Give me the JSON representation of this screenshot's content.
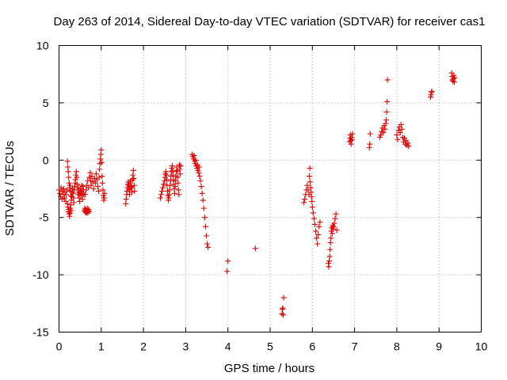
{
  "chart_data": {
    "type": "scatter",
    "title": "Day 263 of 2014, Sidereal Day-to-day VTEC variation (SDTVAR) for receiver cas1",
    "xlabel": "GPS time / hours",
    "ylabel": "SDTVAR / TECUs",
    "xlim": [
      0,
      10
    ],
    "ylim": [
      -15,
      10
    ],
    "x_ticks": [
      0,
      1,
      2,
      3,
      4,
      5,
      6,
      7,
      8,
      9,
      10
    ],
    "y_ticks": [
      -15,
      -10,
      -5,
      0,
      5,
      10
    ],
    "x_tick_labels": [
      "0",
      "1",
      "2",
      "3",
      "4",
      "5",
      "6",
      "7",
      "8",
      "9",
      "10"
    ],
    "y_tick_labels": [
      "-15",
      "-10",
      "-5",
      "0",
      "5",
      "10"
    ],
    "grid": true,
    "marker": "+",
    "series": [
      {
        "name": "cas1",
        "color": "#e00000",
        "points": [
          [
            0.0,
            -2.6
          ],
          [
            0.02,
            -2.9
          ],
          [
            0.04,
            -3.2
          ],
          [
            0.05,
            -2.4
          ],
          [
            0.07,
            -3.4
          ],
          [
            0.08,
            -2.7
          ],
          [
            0.1,
            -3.0
          ],
          [
            0.11,
            -2.5
          ],
          [
            0.13,
            -3.3
          ],
          [
            0.14,
            -2.8
          ],
          [
            0.16,
            -3.6
          ],
          [
            0.17,
            -3.0
          ],
          [
            0.19,
            -2.6
          ],
          [
            0.2,
            -3.8
          ],
          [
            0.21,
            -4.1
          ],
          [
            0.22,
            -4.5
          ],
          [
            0.23,
            -4.3
          ],
          [
            0.24,
            -4.7
          ],
          [
            0.25,
            -4.9
          ],
          [
            0.26,
            -4.6
          ],
          [
            0.27,
            -4.2
          ],
          [
            0.28,
            -3.9
          ],
          [
            0.29,
            -4.4
          ],
          [
            0.2,
            -0.1
          ],
          [
            0.21,
            -0.6
          ],
          [
            0.22,
            -1.0
          ],
          [
            0.23,
            -1.5
          ],
          [
            0.24,
            -2.0
          ],
          [
            0.25,
            -2.4
          ],
          [
            0.26,
            -2.2
          ],
          [
            0.27,
            -2.7
          ],
          [
            0.28,
            -3.1
          ],
          [
            0.29,
            -3.5
          ],
          [
            0.3,
            -3.2
          ],
          [
            0.31,
            -2.8
          ],
          [
            0.32,
            -2.5
          ],
          [
            0.33,
            -2.9
          ],
          [
            0.34,
            -3.3
          ],
          [
            0.35,
            -3.7
          ],
          [
            0.36,
            -2.6
          ],
          [
            0.37,
            -2.3
          ],
          [
            0.38,
            -2.0
          ],
          [
            0.39,
            -1.7
          ],
          [
            0.4,
            -1.3
          ],
          [
            0.41,
            -1.0
          ],
          [
            0.42,
            -1.5
          ],
          [
            0.43,
            -2.1
          ],
          [
            0.44,
            -2.6
          ],
          [
            0.45,
            -3.0
          ],
          [
            0.46,
            -2.4
          ],
          [
            0.47,
            -2.8
          ],
          [
            0.48,
            -3.3
          ],
          [
            0.49,
            -3.6
          ],
          [
            0.5,
            -2.9
          ],
          [
            0.51,
            -2.5
          ],
          [
            0.52,
            -3.1
          ],
          [
            0.53,
            -2.7
          ],
          [
            0.54,
            -2.2
          ],
          [
            0.55,
            -2.9
          ],
          [
            0.56,
            -3.4
          ],
          [
            0.57,
            -2.3
          ],
          [
            0.58,
            -2.6
          ],
          [
            0.59,
            -3.0
          ],
          [
            0.6,
            -4.4
          ],
          [
            0.61,
            -4.2
          ],
          [
            0.62,
            -4.5
          ],
          [
            0.63,
            -4.3
          ],
          [
            0.64,
            -4.6
          ],
          [
            0.65,
            -4.4
          ],
          [
            0.66,
            -4.5
          ],
          [
            0.67,
            -4.2
          ],
          [
            0.68,
            -4.6
          ],
          [
            0.69,
            -4.4
          ],
          [
            0.7,
            -4.3
          ],
          [
            0.71,
            -4.5
          ],
          [
            0.62,
            -3.0
          ],
          [
            0.64,
            -2.6
          ],
          [
            0.66,
            -2.2
          ],
          [
            0.68,
            -1.8
          ],
          [
            0.7,
            -2.4
          ],
          [
            0.72,
            -1.5
          ],
          [
            0.74,
            -1.1
          ],
          [
            0.75,
            -1.8
          ],
          [
            0.76,
            -2.2
          ],
          [
            0.78,
            -1.4
          ],
          [
            0.8,
            -1.9
          ],
          [
            0.82,
            -2.5
          ],
          [
            0.84,
            -1.6
          ],
          [
            0.86,
            -2.0
          ],
          [
            0.88,
            -1.2
          ],
          [
            0.9,
            -1.7
          ],
          [
            0.92,
            -2.3
          ],
          [
            0.94,
            -2.7
          ],
          [
            0.95,
            -1.5
          ],
          [
            0.96,
            -0.8
          ],
          [
            0.97,
            -0.3
          ],
          [
            0.98,
            0.1
          ],
          [
            0.99,
            0.5
          ],
          [
            1.0,
            0.9
          ],
          [
            1.01,
            -0.2
          ],
          [
            1.02,
            -1.4
          ],
          [
            1.03,
            -2.0
          ],
          [
            1.04,
            -2.6
          ],
          [
            1.05,
            -3.1
          ],
          [
            1.06,
            -3.5
          ],
          [
            1.07,
            -3.3
          ],
          [
            1.08,
            -2.9
          ],
          [
            1.58,
            -3.8
          ],
          [
            1.59,
            -3.4
          ],
          [
            1.6,
            -3.0
          ],
          [
            1.61,
            -2.7
          ],
          [
            1.62,
            -2.4
          ],
          [
            1.63,
            -2.1
          ],
          [
            1.64,
            -1.9
          ],
          [
            1.65,
            -2.2
          ],
          [
            1.66,
            -2.6
          ],
          [
            1.67,
            -3.0
          ],
          [
            1.68,
            -2.5
          ],
          [
            1.69,
            -2.0
          ],
          [
            1.7,
            -1.8
          ],
          [
            1.71,
            -2.3
          ],
          [
            1.72,
            -2.8
          ],
          [
            1.73,
            -2.4
          ],
          [
            1.74,
            -1.7
          ],
          [
            1.75,
            -1.3
          ],
          [
            1.76,
            -0.9
          ],
          [
            1.77,
            -1.6
          ],
          [
            1.78,
            -2.2
          ],
          [
            1.79,
            -2.7
          ],
          [
            2.4,
            -3.3
          ],
          [
            2.42,
            -3.0
          ],
          [
            2.44,
            -2.7
          ],
          [
            2.46,
            -2.4
          ],
          [
            2.48,
            -2.1
          ],
          [
            2.5,
            -1.8
          ],
          [
            2.51,
            -1.5
          ],
          [
            2.52,
            -1.2
          ],
          [
            2.53,
            -1.0
          ],
          [
            2.54,
            -1.3
          ],
          [
            2.55,
            -1.7
          ],
          [
            2.56,
            -2.2
          ],
          [
            2.57,
            -2.7
          ],
          [
            2.58,
            -3.1
          ],
          [
            2.59,
            -3.5
          ],
          [
            2.6,
            -3.3
          ],
          [
            2.61,
            -3.0
          ],
          [
            2.62,
            -2.6
          ],
          [
            2.63,
            -2.2
          ],
          [
            2.64,
            -1.8
          ],
          [
            2.65,
            -1.4
          ],
          [
            2.66,
            -1.0
          ],
          [
            2.67,
            -0.7
          ],
          [
            2.68,
            -0.5
          ],
          [
            2.69,
            -0.9
          ],
          [
            2.7,
            -1.3
          ],
          [
            2.71,
            -1.7
          ],
          [
            2.72,
            -2.1
          ],
          [
            2.73,
            -2.5
          ],
          [
            2.74,
            -2.9
          ],
          [
            2.75,
            -2.3
          ],
          [
            2.76,
            -1.8
          ],
          [
            2.77,
            -1.4
          ],
          [
            2.78,
            -1.0
          ],
          [
            2.79,
            -0.6
          ],
          [
            2.8,
            -0.9
          ],
          [
            2.81,
            -1.5
          ],
          [
            2.82,
            -2.0
          ],
          [
            2.83,
            -2.6
          ],
          [
            2.84,
            -3.0
          ],
          [
            2.85,
            -0.4
          ],
          [
            2.86,
            -0.8
          ],
          [
            2.87,
            -1.2
          ],
          [
            2.88,
            -0.5
          ],
          [
            3.15,
            0.5
          ],
          [
            3.17,
            0.3
          ],
          [
            3.19,
            0.1
          ],
          [
            3.21,
            -0.1
          ],
          [
            3.23,
            -0.3
          ],
          [
            3.25,
            -0.5
          ],
          [
            3.27,
            -0.7
          ],
          [
            3.29,
            -0.9
          ],
          [
            3.31,
            -1.1
          ],
          [
            3.33,
            -1.4
          ],
          [
            3.35,
            -1.8
          ],
          [
            3.37,
            -2.3
          ],
          [
            3.39,
            -2.9
          ],
          [
            3.41,
            -3.5
          ],
          [
            3.43,
            -4.2
          ],
          [
            3.45,
            -5.0
          ],
          [
            3.47,
            -5.8
          ],
          [
            3.49,
            -6.6
          ],
          [
            3.51,
            -7.3
          ],
          [
            3.53,
            -7.6
          ],
          [
            3.2,
            0.4
          ],
          [
            3.24,
            0.0
          ],
          [
            3.28,
            -0.4
          ],
          [
            3.32,
            -0.6
          ],
          [
            3.98,
            -9.7
          ],
          [
            4.0,
            -8.8
          ],
          [
            4.65,
            -7.7
          ],
          [
            5.28,
            -13.4
          ],
          [
            5.29,
            -13.0
          ],
          [
            5.3,
            -12.9
          ],
          [
            5.31,
            -13.5
          ],
          [
            5.32,
            -12.0
          ],
          [
            5.8,
            -3.7
          ],
          [
            5.82,
            -3.4
          ],
          [
            5.84,
            -3.0
          ],
          [
            5.86,
            -2.6
          ],
          [
            5.88,
            -2.2
          ],
          [
            5.9,
            -2.6
          ],
          [
            5.92,
            -3.0
          ],
          [
            5.93,
            -1.4
          ],
          [
            5.94,
            -0.7
          ],
          [
            5.95,
            -1.9
          ],
          [
            5.96,
            -2.4
          ],
          [
            5.97,
            -2.8
          ],
          [
            5.98,
            -3.2
          ],
          [
            5.99,
            -3.6
          ],
          [
            6.0,
            -4.1
          ],
          [
            6.02,
            -4.6
          ],
          [
            6.04,
            -5.1
          ],
          [
            6.06,
            -5.6
          ],
          [
            6.08,
            -6.2
          ],
          [
            6.1,
            -6.8
          ],
          [
            6.12,
            -7.3
          ],
          [
            6.14,
            -6.5
          ],
          [
            6.16,
            -5.8
          ],
          [
            6.18,
            -5.4
          ],
          [
            6.38,
            -9.0
          ],
          [
            6.39,
            -9.3
          ],
          [
            6.4,
            -8.8
          ],
          [
            6.41,
            -8.4
          ],
          [
            6.42,
            -7.8
          ],
          [
            6.43,
            -7.2
          ],
          [
            6.44,
            -6.8
          ],
          [
            6.45,
            -6.2
          ],
          [
            6.46,
            -5.9
          ],
          [
            6.47,
            -6.4
          ],
          [
            6.48,
            -5.7
          ],
          [
            6.49,
            -6.0
          ],
          [
            6.5,
            -5.8
          ],
          [
            6.52,
            -5.5
          ],
          [
            6.54,
            -5.1
          ],
          [
            6.56,
            -4.7
          ],
          [
            6.58,
            -6.1
          ],
          [
            6.88,
            1.6
          ],
          [
            6.89,
            1.9
          ],
          [
            6.9,
            2.2
          ],
          [
            6.91,
            1.7
          ],
          [
            6.92,
            1.4
          ],
          [
            6.93,
            2.0
          ],
          [
            6.94,
            1.8
          ],
          [
            6.95,
            2.3
          ],
          [
            7.35,
            1.1
          ],
          [
            7.36,
            1.4
          ],
          [
            7.37,
            2.3
          ],
          [
            7.6,
            2.0
          ],
          [
            7.62,
            2.2
          ],
          [
            7.64,
            2.5
          ],
          [
            7.66,
            2.8
          ],
          [
            7.68,
            2.4
          ],
          [
            7.7,
            3.0
          ],
          [
            7.72,
            2.7
          ],
          [
            7.74,
            3.2
          ],
          [
            7.75,
            3.5
          ],
          [
            7.76,
            4.2
          ],
          [
            7.77,
            5.1
          ],
          [
            7.78,
            7.0
          ],
          [
            8.0,
            2.2
          ],
          [
            8.02,
            1.8
          ],
          [
            8.04,
            2.6
          ],
          [
            8.06,
            2.9
          ],
          [
            8.08,
            2.4
          ],
          [
            8.1,
            3.1
          ],
          [
            8.12,
            2.7
          ],
          [
            8.14,
            2.0
          ],
          [
            8.16,
            1.6
          ],
          [
            8.18,
            1.9
          ],
          [
            8.2,
            1.4
          ],
          [
            8.22,
            1.7
          ],
          [
            8.24,
            1.3
          ],
          [
            8.26,
            1.5
          ],
          [
            8.28,
            1.2
          ],
          [
            8.8,
            5.5
          ],
          [
            8.81,
            5.7
          ],
          [
            8.82,
            5.9
          ],
          [
            8.83,
            6.0
          ],
          [
            9.3,
            7.6
          ],
          [
            9.31,
            7.3
          ],
          [
            9.32,
            7.0
          ],
          [
            9.33,
            6.9
          ],
          [
            9.34,
            7.1
          ],
          [
            9.35,
            7.4
          ],
          [
            9.36,
            6.8
          ],
          [
            9.37,
            7.2
          ]
        ]
      }
    ]
  }
}
